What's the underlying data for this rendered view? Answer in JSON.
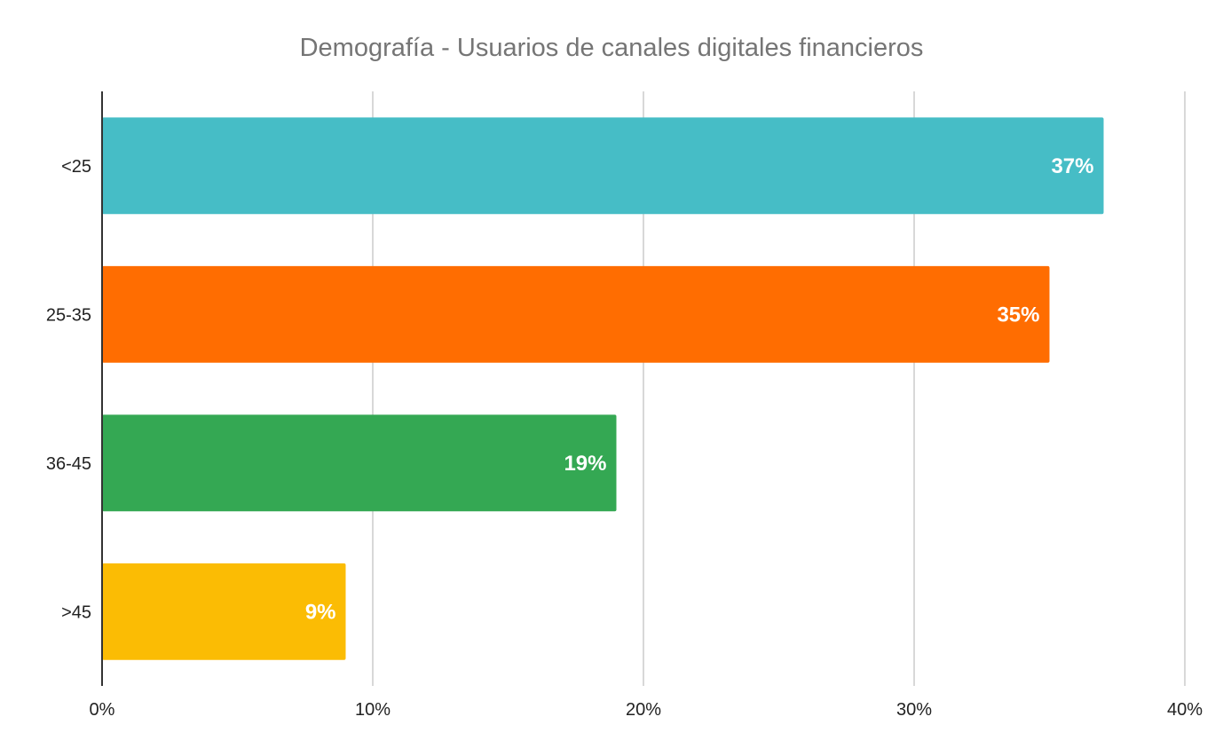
{
  "chart_data": {
    "type": "bar",
    "orientation": "horizontal",
    "title": "Demografía - Usuarios de canales digitales financieros",
    "categories": [
      "<25",
      "25-35",
      "36-45",
      ">45"
    ],
    "values": [
      37,
      35,
      19,
      9
    ],
    "data_labels": [
      "37%",
      "35%",
      "19%",
      "9%"
    ],
    "colors": [
      "#46bdc6",
      "#ff6d01",
      "#34a853",
      "#fbbc04"
    ],
    "xlim": [
      0,
      40
    ],
    "x_ticks": [
      0,
      10,
      20,
      30,
      40
    ],
    "x_tick_labels": [
      "0%",
      "10%",
      "20%",
      "30%",
      "40%"
    ],
    "grid": true,
    "legend": "none"
  }
}
